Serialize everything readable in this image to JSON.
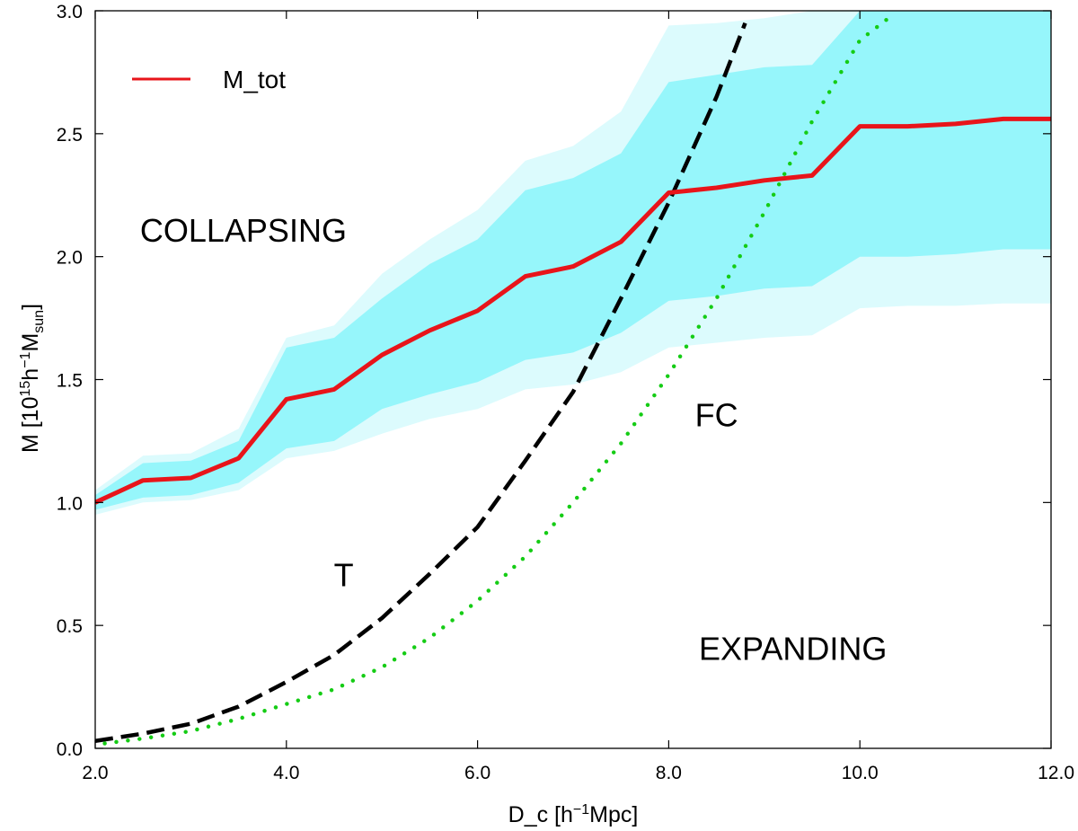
{
  "chart_data": {
    "type": "line",
    "title": "",
    "xlabel": {
      "base": "D_c [h",
      "sup": "−1",
      "tail": "Mpc]"
    },
    "ylabel": {
      "base": "M [10",
      "sup1": "15",
      "mid": "h",
      "sup2": "−1",
      "m": "M",
      "sub": "sun",
      "tail": "]"
    },
    "xlim": [
      2.0,
      12.0
    ],
    "ylim": [
      0.0,
      3.0
    ],
    "xticks": [
      2.0,
      4.0,
      6.0,
      8.0,
      10.0,
      12.0
    ],
    "xtick_labels": [
      "2.0",
      "4.0",
      "6.0",
      "8.0",
      "10.0",
      "12.0"
    ],
    "yticks": [
      0.0,
      0.5,
      1.0,
      1.5,
      2.0,
      2.5,
      3.0
    ],
    "ytick_labels": [
      "0.0",
      "0.5",
      "1.0",
      "1.5",
      "2.0",
      "2.5",
      "3.0"
    ],
    "legend": {
      "position": "top-left",
      "entries": [
        {
          "label": "M_tot",
          "color": "#e8141a"
        }
      ]
    },
    "annotations": [
      {
        "text": "COLLAPSING",
        "x": 3.55,
        "y": 2.06,
        "color": "#000000"
      },
      {
        "text": "T",
        "x": 4.6,
        "y": 0.66,
        "color": "#000000"
      },
      {
        "text": "FC",
        "x": 8.5,
        "y": 1.31,
        "color": "#444444"
      },
      {
        "text": "EXPANDING",
        "x": 9.3,
        "y": 0.36,
        "color": "#000000"
      }
    ],
    "x": [
      2.0,
      2.5,
      3.0,
      3.5,
      4.0,
      4.5,
      5.0,
      5.5,
      6.0,
      6.5,
      7.0,
      7.5,
      8.0,
      8.5,
      9.0,
      9.5,
      10.0,
      10.5,
      11.0,
      11.5,
      12.0
    ],
    "series": [
      {
        "name": "M_tot",
        "style": "solid",
        "color": "#e8141a",
        "values": [
          1.0,
          1.09,
          1.1,
          1.18,
          1.42,
          1.46,
          1.6,
          1.7,
          1.78,
          1.92,
          1.96,
          2.06,
          2.26,
          2.28,
          2.31,
          2.33,
          2.53,
          2.53,
          2.54,
          2.56,
          2.56
        ]
      }
    ],
    "bands": [
      {
        "name": "outer band",
        "color": "#dcfbfd",
        "upper": [
          1.05,
          1.19,
          1.2,
          1.3,
          1.67,
          1.72,
          1.93,
          2.07,
          2.19,
          2.39,
          2.45,
          2.59,
          2.94,
          2.95,
          2.97,
          3.0,
          3.0,
          3.0,
          3.0,
          3.0,
          3.0
        ],
        "lower": [
          0.95,
          1.0,
          1.01,
          1.05,
          1.18,
          1.21,
          1.28,
          1.34,
          1.38,
          1.46,
          1.48,
          1.53,
          1.63,
          1.65,
          1.67,
          1.68,
          1.79,
          1.8,
          1.8,
          1.81,
          1.81
        ]
      },
      {
        "name": "inner band",
        "color": "#96f6fb",
        "upper": [
          1.03,
          1.16,
          1.17,
          1.25,
          1.63,
          1.67,
          1.83,
          1.97,
          2.07,
          2.27,
          2.32,
          2.42,
          2.71,
          2.74,
          2.77,
          2.78,
          3.0,
          3.0,
          3.0,
          3.0,
          3.0
        ],
        "lower": [
          0.97,
          1.02,
          1.03,
          1.08,
          1.22,
          1.25,
          1.38,
          1.44,
          1.49,
          1.58,
          1.61,
          1.69,
          1.82,
          1.84,
          1.87,
          1.88,
          2.0,
          2.0,
          2.01,
          2.03,
          2.03
        ]
      }
    ],
    "curves": [
      {
        "name": "T",
        "style": "dashed",
        "color": "#000000",
        "x": [
          2.0,
          2.5,
          3.0,
          3.5,
          4.0,
          4.5,
          5.0,
          5.5,
          6.0,
          6.5,
          7.0,
          7.5,
          8.0,
          8.5,
          8.8
        ],
        "y": [
          0.03,
          0.06,
          0.1,
          0.17,
          0.27,
          0.38,
          0.53,
          0.71,
          0.9,
          1.17,
          1.45,
          1.83,
          2.22,
          2.65,
          2.95
        ]
      },
      {
        "name": "FC",
        "style": "dotted",
        "color": "#15cc15",
        "x": [
          2.1,
          2.5,
          3.0,
          3.5,
          4.0,
          4.5,
          5.0,
          5.5,
          6.0,
          6.5,
          7.0,
          7.5,
          8.0,
          8.5,
          9.0,
          9.5,
          10.0,
          10.3
        ],
        "y": [
          0.02,
          0.04,
          0.07,
          0.12,
          0.18,
          0.24,
          0.33,
          0.45,
          0.6,
          0.78,
          1.0,
          1.24,
          1.52,
          1.83,
          2.18,
          2.55,
          2.88,
          2.97
        ]
      }
    ]
  }
}
